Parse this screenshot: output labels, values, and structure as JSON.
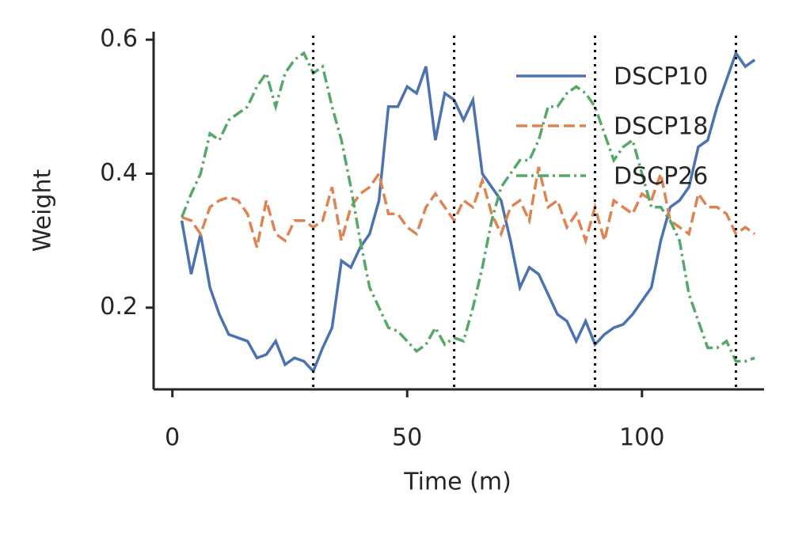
{
  "chart_data": {
    "type": "line",
    "xlabel": "Time (m)",
    "ylabel": "Weight",
    "x": [
      2,
      4,
      6,
      8,
      10,
      12,
      14,
      16,
      18,
      20,
      22,
      24,
      26,
      28,
      30,
      32,
      34,
      36,
      38,
      40,
      42,
      44,
      46,
      48,
      50,
      52,
      54,
      56,
      58,
      60,
      62,
      64,
      66,
      68,
      70,
      72,
      74,
      76,
      78,
      80,
      82,
      84,
      86,
      88,
      90,
      92,
      94,
      96,
      98,
      100,
      102,
      104,
      106,
      108,
      110,
      112,
      114,
      116,
      118,
      120,
      122,
      124
    ],
    "series": [
      {
        "name": "DSCP10",
        "color": "#4c72b0",
        "linestyle": "solid",
        "values": [
          0.33,
          0.25,
          0.31,
          0.23,
          0.19,
          0.16,
          0.155,
          0.15,
          0.125,
          0.13,
          0.15,
          0.115,
          0.125,
          0.12,
          0.105,
          0.14,
          0.17,
          0.27,
          0.26,
          0.29,
          0.31,
          0.36,
          0.5,
          0.5,
          0.53,
          0.52,
          0.56,
          0.45,
          0.52,
          0.51,
          0.48,
          0.51,
          0.4,
          0.38,
          0.36,
          0.3,
          0.23,
          0.26,
          0.25,
          0.22,
          0.19,
          0.18,
          0.15,
          0.18,
          0.145,
          0.16,
          0.17,
          0.175,
          0.19,
          0.21,
          0.23,
          0.3,
          0.35,
          0.36,
          0.38,
          0.44,
          0.45,
          0.5,
          0.54,
          0.58,
          0.56,
          0.57
        ]
      },
      {
        "name": "DSCP18",
        "color": "#dd8452",
        "linestyle": "dashed",
        "values": [
          0.335,
          0.33,
          0.31,
          0.35,
          0.36,
          0.365,
          0.36,
          0.34,
          0.29,
          0.36,
          0.31,
          0.3,
          0.33,
          0.33,
          0.32,
          0.33,
          0.38,
          0.3,
          0.35,
          0.37,
          0.38,
          0.4,
          0.34,
          0.34,
          0.32,
          0.31,
          0.35,
          0.37,
          0.35,
          0.33,
          0.36,
          0.35,
          0.39,
          0.34,
          0.31,
          0.35,
          0.36,
          0.33,
          0.41,
          0.35,
          0.36,
          0.32,
          0.34,
          0.3,
          0.35,
          0.3,
          0.36,
          0.35,
          0.34,
          0.37,
          0.36,
          0.4,
          0.33,
          0.32,
          0.31,
          0.37,
          0.35,
          0.35,
          0.34,
          0.31,
          0.32,
          0.31
        ]
      },
      {
        "name": "DSCP26",
        "color": "#55a868",
        "linestyle": "dashdot",
        "values": [
          0.335,
          0.37,
          0.4,
          0.46,
          0.45,
          0.48,
          0.49,
          0.5,
          0.53,
          0.55,
          0.5,
          0.55,
          0.57,
          0.58,
          0.55,
          0.56,
          0.5,
          0.45,
          0.38,
          0.3,
          0.23,
          0.2,
          0.17,
          0.165,
          0.15,
          0.135,
          0.145,
          0.17,
          0.145,
          0.155,
          0.15,
          0.2,
          0.26,
          0.33,
          0.38,
          0.4,
          0.42,
          0.42,
          0.45,
          0.5,
          0.5,
          0.52,
          0.53,
          0.52,
          0.5,
          0.46,
          0.42,
          0.44,
          0.45,
          0.4,
          0.35,
          0.35,
          0.33,
          0.3,
          0.22,
          0.18,
          0.14,
          0.14,
          0.15,
          0.12,
          0.12,
          0.125
        ]
      }
    ],
    "vlines": [
      30,
      60,
      90,
      120
    ],
    "xlim": [
      -4,
      126
    ],
    "xticks": [
      0,
      50,
      100
    ],
    "ylim": [
      0.078,
      0.612
    ],
    "yticks": [
      0.2,
      0.4,
      0.6
    ],
    "legend": "upper right",
    "grid": false
  }
}
